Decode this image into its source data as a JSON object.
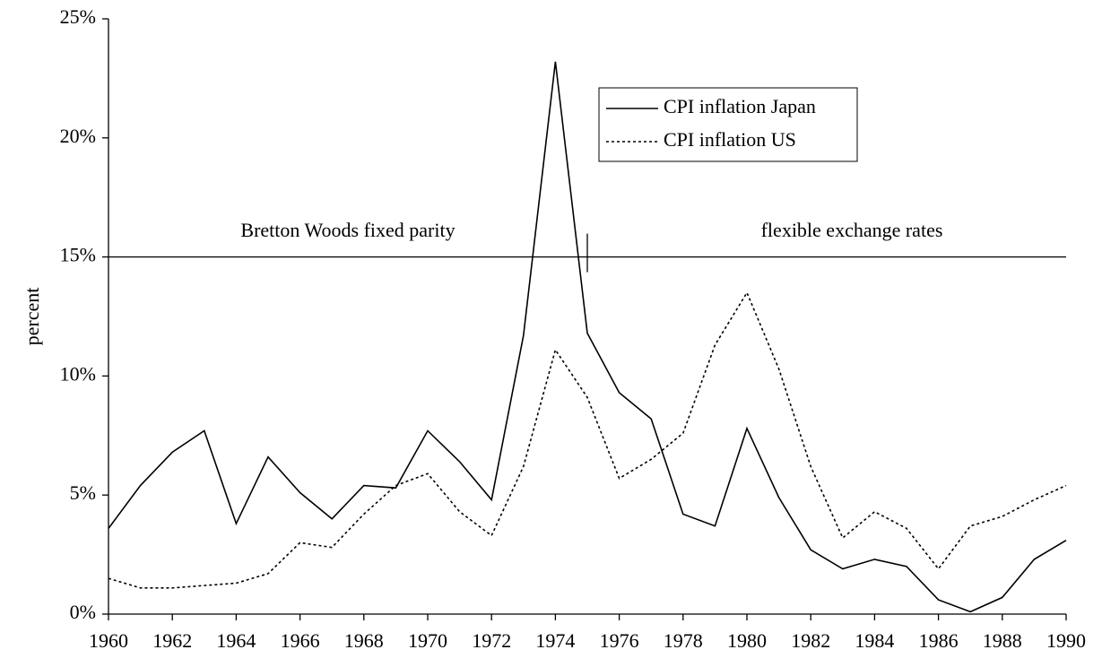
{
  "chart_data": {
    "type": "line",
    "y_label": "percent",
    "x": [
      1960,
      1961,
      1962,
      1963,
      1964,
      1965,
      1966,
      1967,
      1968,
      1969,
      1970,
      1971,
      1972,
      1973,
      1974,
      1975,
      1976,
      1977,
      1978,
      1979,
      1980,
      1981,
      1982,
      1983,
      1984,
      1985,
      1986,
      1987,
      1988,
      1989,
      1990
    ],
    "series": [
      {
        "name": "CPI inflation Japan",
        "color": "#000000",
        "dash": "solid",
        "values": [
          3.6,
          5.4,
          6.8,
          7.7,
          3.8,
          6.6,
          5.1,
          4.0,
          5.4,
          5.3,
          7.7,
          6.4,
          4.8,
          11.7,
          23.2,
          11.8,
          9.3,
          8.2,
          4.2,
          3.7,
          7.8,
          4.9,
          2.7,
          1.9,
          2.3,
          2.0,
          0.6,
          0.1,
          0.7,
          2.3,
          3.1
        ]
      },
      {
        "name": "CPI inflation US",
        "color": "#000000",
        "dash": "dotted",
        "values": [
          1.5,
          1.1,
          1.1,
          1.2,
          1.3,
          1.7,
          3.0,
          2.8,
          4.2,
          5.4,
          5.9,
          4.3,
          3.3,
          6.2,
          11.1,
          9.1,
          5.7,
          6.5,
          7.6,
          11.3,
          13.5,
          10.3,
          6.2,
          3.2,
          4.3,
          3.6,
          1.9,
          3.7,
          4.1,
          4.8,
          5.4
        ]
      }
    ],
    "xlim": [
      1960,
      1990
    ],
    "xticks": [
      1960,
      1962,
      1964,
      1966,
      1968,
      1970,
      1972,
      1974,
      1976,
      1978,
      1980,
      1982,
      1984,
      1986,
      1988,
      1990
    ],
    "ylim": [
      0,
      25
    ],
    "yticks": [
      {
        "value": 0,
        "label": "0%"
      },
      {
        "value": 5,
        "label": "5%"
      },
      {
        "value": 10,
        "label": "10%"
      },
      {
        "value": 15,
        "label": "15%"
      },
      {
        "value": 20,
        "label": "20%"
      },
      {
        "value": 25,
        "label": "25%"
      }
    ],
    "reference_line": 15,
    "regime_change_year": 1975,
    "annotations": [
      "Bretton Woods fixed parity",
      "flexible exchange rates"
    ],
    "legend": "upper right",
    "grid": false
  }
}
